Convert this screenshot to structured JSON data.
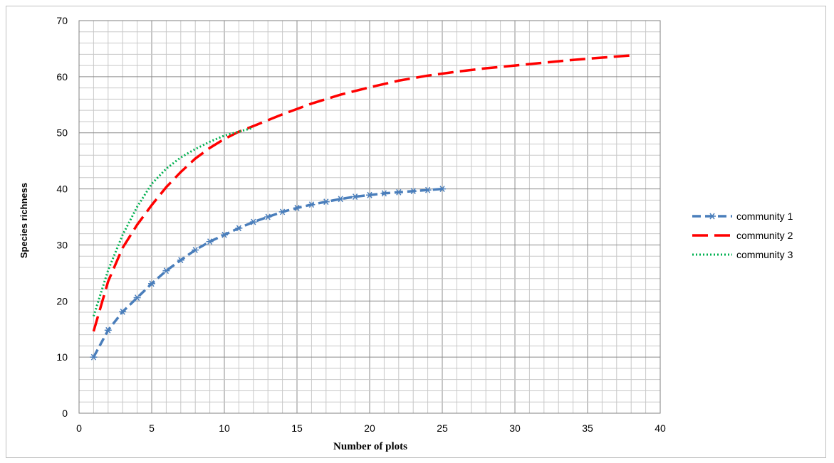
{
  "chart_data": {
    "type": "line",
    "title": "",
    "xlabel": "Number of plots",
    "ylabel": "Species richness",
    "xlim": [
      0,
      40
    ],
    "ylim": [
      0,
      70
    ],
    "x_ticks": [
      0,
      5,
      10,
      15,
      20,
      25,
      30,
      35,
      40
    ],
    "y_ticks": [
      0,
      10,
      20,
      30,
      40,
      50,
      60,
      70
    ],
    "grid": true,
    "legend_position": "right",
    "series": [
      {
        "name": "community 1",
        "color": "#4a7ebb",
        "style": "dashed with star markers",
        "x": [
          1,
          2,
          3,
          4,
          5,
          6,
          7,
          8,
          9,
          10,
          11,
          12,
          13,
          14,
          15,
          16,
          17,
          18,
          19,
          20,
          21,
          22,
          23,
          24,
          25
        ],
        "y": [
          10,
          14.8,
          18.1,
          20.6,
          23.1,
          25.4,
          27.3,
          29.1,
          30.6,
          31.8,
          33,
          34.1,
          35,
          35.9,
          36.6,
          37.2,
          37.7,
          38.2,
          38.6,
          38.9,
          39.2,
          39.4,
          39.6,
          39.8,
          40
        ]
      },
      {
        "name": "community 2",
        "color": "#ff0000",
        "style": "long dash",
        "x": [
          1,
          2,
          3,
          4,
          5,
          6,
          7,
          8,
          9,
          10,
          11,
          12,
          14,
          16,
          18,
          20,
          22,
          24,
          26,
          28,
          30,
          32,
          34,
          36,
          38
        ],
        "y": [
          14.6,
          23.5,
          29.5,
          33.6,
          37.1,
          40.3,
          43,
          45.4,
          47.3,
          48.9,
          50.2,
          51.2,
          53.3,
          55.2,
          56.8,
          58.1,
          59.3,
          60.2,
          60.9,
          61.5,
          62,
          62.5,
          63,
          63.4,
          63.8
        ]
      },
      {
        "name": "community 3",
        "color": "#00b050",
        "style": "dotted",
        "x": [
          1,
          2,
          3,
          4,
          5,
          6,
          7,
          8,
          9,
          10,
          11,
          12
        ],
        "y": [
          17.3,
          25.5,
          31.8,
          36.8,
          40.9,
          43.6,
          45.6,
          47.1,
          48.4,
          49.5,
          50.2,
          50.9
        ]
      }
    ]
  }
}
